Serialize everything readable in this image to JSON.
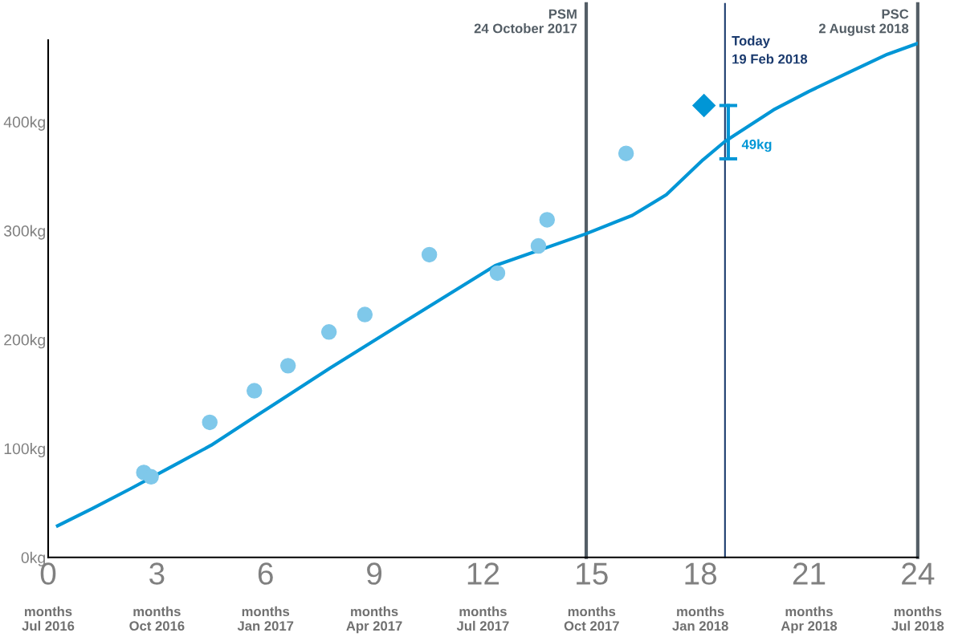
{
  "chart_data": {
    "type": "line",
    "series": [
      {
        "color": "#0096d6",
        "marker": "none",
        "x": [
          0.26,
          1.23,
          2.27,
          3.5,
          4.5,
          5.84,
          7.79,
          9.96,
          12.34,
          14.83,
          16.12,
          17.06,
          18.07,
          18.68,
          20.02,
          21.0,
          22.08,
          23.16,
          24
        ],
        "values": [
          29,
          45,
          63,
          85,
          103,
          132,
          174,
          219,
          268,
          297,
          314,
          333,
          365,
          382,
          411,
          428,
          445,
          462,
          472
        ]
      },
      {
        "type": "scatter",
        "color": "#7fc8ea",
        "marker": "circle",
        "x": [
          2.64,
          2.84,
          4.46,
          5.69,
          6.62,
          7.75,
          8.74,
          10.52,
          12.4,
          13.53,
          13.77,
          15.95
        ],
        "values": [
          78,
          74,
          124,
          153,
          176,
          207,
          223,
          278,
          261,
          286,
          310,
          371
        ]
      },
      {
        "type": "scatter",
        "color": "#0096d6",
        "marker": "diamond",
        "x": [
          18.1
        ],
        "values": [
          415
        ]
      },
      {
        "type": "line",
        "color": "#0096d6",
        "marker": "none",
        "x": [
          18.77,
          18.77
        ],
        "values": [
          366,
          415
        ]
      }
    ],
    "xlim": [
      0,
      24
    ],
    "xticks": [
      0,
      3,
      6,
      9,
      12,
      15,
      18,
      21,
      24
    ],
    "ylim": [
      0,
      475
    ],
    "yticks": [
      {
        "value": 0,
        "label": "0kg"
      },
      {
        "value": 100,
        "label": "100kg"
      },
      {
        "value": 200,
        "label": "200kg"
      },
      {
        "value": 300,
        "label": "300kg"
      },
      {
        "value": 400,
        "label": "400kg"
      }
    ],
    "ref_lines": [
      {
        "axis": "x",
        "value": 14.85,
        "label": "PSM\n24 October 2017",
        "color": "#545e66"
      },
      {
        "axis": "x",
        "value": 18.68,
        "label": "Today\n19 Feb 2018",
        "color": "#1a3a6e"
      },
      {
        "axis": "x",
        "value": 24,
        "label": "PSC\n2 August 2018",
        "color": "#545e66"
      }
    ],
    "annotations": [
      "months\nJul 2016",
      "months\nOct 2016",
      "months\nJan 2017",
      "months\nApr 2017",
      "months\nJul 2017",
      "months\nOct 2017",
      "months\nJan 2018",
      "months\nApr 2018",
      "months\nJul 2018",
      "49kg"
    ],
    "grid": false,
    "legend": false
  }
}
